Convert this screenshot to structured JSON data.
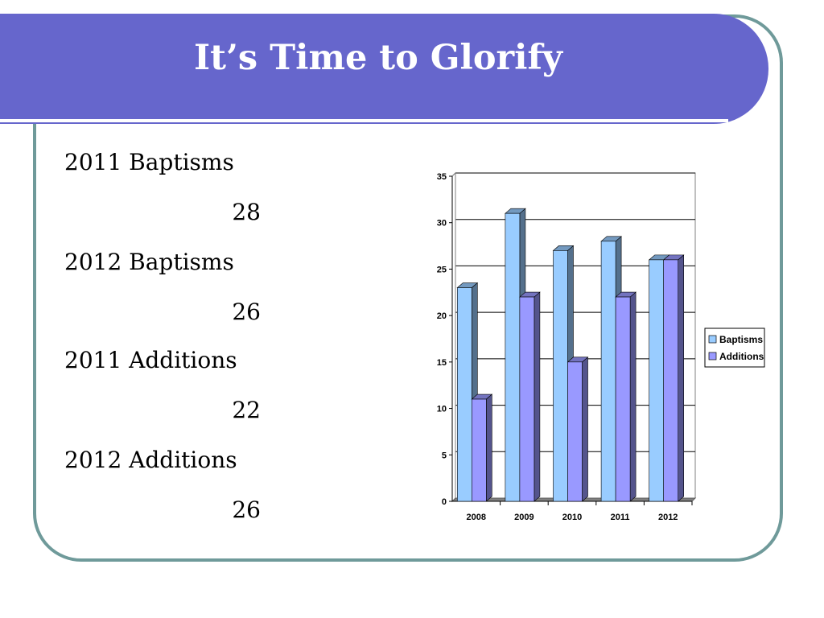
{
  "slide": {
    "title": "It’s Time to Glorify"
  },
  "stats": [
    {
      "label": "2011 Baptisms",
      "value": "28"
    },
    {
      "label": "2012 Baptisms",
      "value": "26"
    },
    {
      "label": "2011 Additions",
      "value": "22"
    },
    {
      "label": "2012 Additions",
      "value": "26"
    }
  ],
  "colors": {
    "banner": "#6666cc",
    "frame": "#6f9a9a",
    "baptisms": "#99ccff",
    "additions": "#9999ff"
  },
  "chart_data": {
    "type": "bar",
    "categories": [
      "2008",
      "2009",
      "2010",
      "2011",
      "2012"
    ],
    "series": [
      {
        "name": "Baptisms",
        "values": [
          23,
          31,
          27,
          28,
          26
        ],
        "color": "#99ccff"
      },
      {
        "name": "Additions",
        "values": [
          11,
          22,
          15,
          22,
          26
        ],
        "color": "#9999ff"
      }
    ],
    "y_ticks": [
      "0",
      "5",
      "10",
      "15",
      "20",
      "25",
      "30",
      "35"
    ],
    "ylim": [
      0,
      35
    ],
    "grid": true,
    "legend_position": "right",
    "style": "3d-column"
  }
}
